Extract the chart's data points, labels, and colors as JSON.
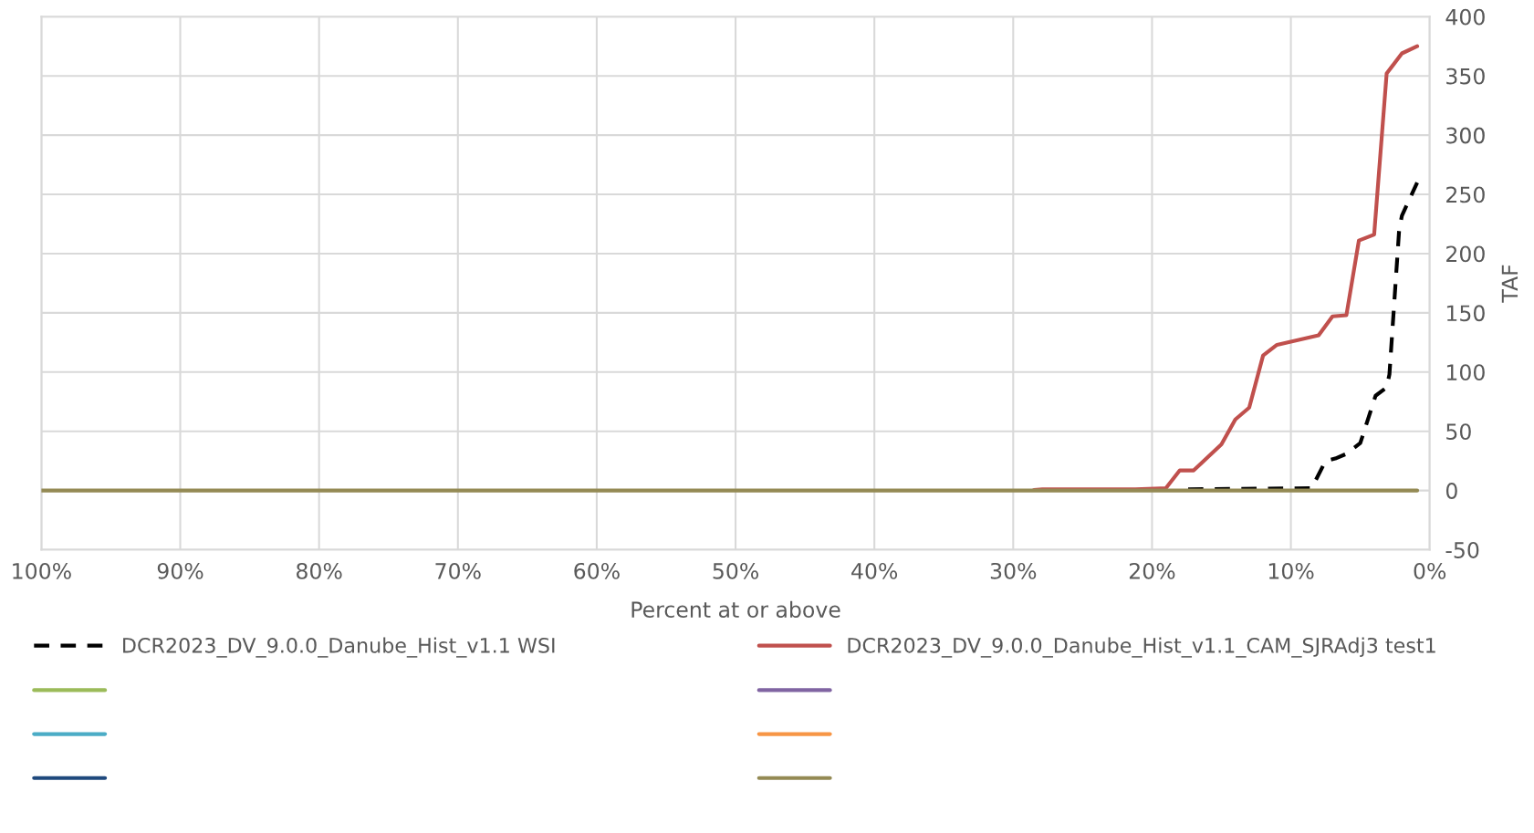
{
  "chart_data": {
    "type": "line",
    "xlabel": "Percent at or above",
    "ylabel": "TAF",
    "xlim": [
      100,
      0
    ],
    "xticks": [
      {
        "value": 100,
        "label": "100%"
      },
      {
        "value": 90,
        "label": "90%"
      },
      {
        "value": 80,
        "label": "80%"
      },
      {
        "value": 70,
        "label": "70%"
      },
      {
        "value": 60,
        "label": "60%"
      },
      {
        "value": 50,
        "label": "50%"
      },
      {
        "value": 40,
        "label": "40%"
      },
      {
        "value": 30,
        "label": "30%"
      },
      {
        "value": 20,
        "label": "20%"
      },
      {
        "value": 10,
        "label": "10%"
      },
      {
        "value": 0,
        "label": "0%"
      }
    ],
    "ylim": [
      -50,
      400
    ],
    "yticks": [
      -50,
      0,
      50,
      100,
      150,
      200,
      250,
      300,
      350,
      400
    ],
    "grid": true,
    "legend": "bottom",
    "series": [
      {
        "name": "DCR2023_DV_9.0.0_Danube_Hist_v1.1 WSI",
        "color": "#000000",
        "line_style": "dashed",
        "x": [
          17.4,
          8.5,
          7.5,
          6.8,
          6.0,
          5.0,
          3.9,
          3.1,
          2.9,
          2.2,
          2.0,
          0.9
        ],
        "values": [
          1,
          2,
          25,
          27,
          31,
          40,
          80,
          87,
          98,
          220,
          232,
          260
        ]
      },
      {
        "name": "DCR2023_DV_9.0.0_Danube_Hist_v1.1_CAM_SJRAdj3 test1",
        "color": "#c0504d",
        "line_style": "solid",
        "x": [
          28.5,
          27.9,
          21.2,
          19.0,
          18.0,
          17.0,
          15.0,
          14.0,
          13.0,
          12.0,
          11.0,
          8.0,
          7.0,
          6.0,
          5.1,
          4.0,
          3.1,
          2.0,
          0.9
        ],
        "values": [
          0.5,
          1,
          1,
          2,
          17,
          17,
          39,
          60,
          70,
          114,
          123,
          131,
          147,
          148,
          211,
          216,
          352,
          369,
          375
        ]
      },
      {
        "color": "#9bbb59",
        "line_style": "solid"
      },
      {
        "color": "#8064a2",
        "line_style": "solid"
      },
      {
        "color": "#4bacc6",
        "line_style": "solid"
      },
      {
        "color": "#f79646",
        "line_style": "solid"
      },
      {
        "color": "#1f497d",
        "line_style": "solid"
      },
      {
        "color": "#948a54",
        "line_style": "solid",
        "x": [
          100,
          0.9
        ],
        "values": [
          0,
          0
        ]
      }
    ]
  }
}
